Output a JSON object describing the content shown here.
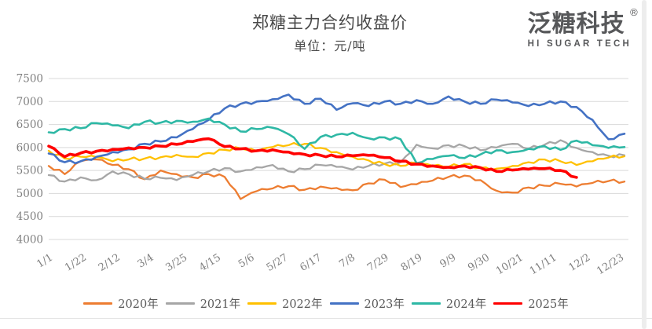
{
  "header": {
    "title": "郑糖主力合约收盘价",
    "subtitle": "单位：元/吨"
  },
  "brand": {
    "name": "泛糖科技",
    "registered_mark": "®",
    "tagline": "HI SUGAR TECH"
  },
  "colors": {
    "grid": "#d9d9d9",
    "axis_text": "#7f7f7f",
    "title_text": "#4a4a4a",
    "legend_text": "#595959",
    "brand_text": "#57585a"
  },
  "chart_data": {
    "type": "line",
    "title": "郑糖主力合约收盘价",
    "subtitle": "单位：元/吨",
    "ylabel": "元/吨",
    "ylim": [
      4000,
      7500
    ],
    "y_ticks": [
      4000,
      4500,
      5000,
      5500,
      6000,
      6500,
      7000,
      7500
    ],
    "grid": "horizontal",
    "legend_position": "bottom",
    "x_tick_labels": [
      "1/1",
      "1/22",
      "2/12",
      "3/4",
      "3/25",
      "4/15",
      "5/6",
      "5/27",
      "6/17",
      "7/8",
      "7/29",
      "8/19",
      "9/9",
      "9/30",
      "10/21",
      "11/11",
      "12/2",
      "12/23"
    ],
    "x_tick_days": [
      0,
      21,
      42,
      63,
      84,
      105,
      126,
      147,
      168,
      189,
      210,
      231,
      252,
      273,
      294,
      315,
      336,
      357
    ],
    "x_days": [
      0,
      10,
      20,
      30,
      40,
      50,
      60,
      70,
      80,
      90,
      100,
      110,
      120,
      130,
      140,
      150,
      160,
      170,
      180,
      190,
      200,
      210,
      220,
      230,
      240,
      250,
      260,
      270,
      280,
      290,
      300,
      310,
      320,
      330,
      340,
      350,
      360
    ],
    "series": [
      {
        "name": "2020年",
        "color": "#ED7D31",
        "stroke_width": 2.3,
        "values": [
          5600,
          5420,
          5700,
          5740,
          5620,
          5530,
          5310,
          5500,
          5420,
          5350,
          5420,
          5360,
          4880,
          5050,
          5110,
          5160,
          5080,
          5150,
          5120,
          5070,
          5220,
          5300,
          5140,
          5200,
          5280,
          5360,
          5390,
          5290,
          5060,
          5020,
          5130,
          5170,
          5210,
          5150,
          5230,
          5270,
          5260
        ]
      },
      {
        "name": "2021年",
        "color": "#A6A6A6",
        "stroke_width": 2.3,
        "values": [
          5400,
          5260,
          5350,
          5290,
          5480,
          5420,
          5320,
          5340,
          5290,
          5400,
          5480,
          5550,
          5480,
          5570,
          5620,
          5480,
          5530,
          5620,
          5580,
          5520,
          5600,
          5650,
          5680,
          6060,
          5980,
          6050,
          6030,
          5940,
          6000,
          6080,
          5970,
          6060,
          6160,
          5990,
          5900,
          5820,
          5830
        ]
      },
      {
        "name": "2022年",
        "color": "#FFC000",
        "stroke_width": 2.3,
        "values": [
          5930,
          5760,
          5800,
          5790,
          5700,
          5740,
          5760,
          5790,
          5840,
          5800,
          5880,
          5950,
          5980,
          5920,
          6010,
          6050,
          6080,
          5990,
          5900,
          5800,
          5720,
          5640,
          5600,
          5660,
          5600,
          5580,
          5640,
          5560,
          5540,
          5600,
          5680,
          5740,
          5700,
          5620,
          5700,
          5780,
          5810
        ]
      },
      {
        "name": "2023年",
        "color": "#4472C4",
        "stroke_width": 2.6,
        "values": [
          5870,
          5680,
          5700,
          5800,
          5900,
          5960,
          6080,
          6130,
          6220,
          6400,
          6600,
          6850,
          6950,
          7000,
          7050,
          7150,
          6950,
          7060,
          6820,
          6960,
          6900,
          7000,
          6950,
          7030,
          6950,
          7110,
          7000,
          6950,
          7040,
          6980,
          6900,
          6950,
          7000,
          6880,
          6600,
          6180,
          6300
        ]
      },
      {
        "name": "2024年",
        "color": "#2EB8A5",
        "stroke_width": 2.6,
        "values": [
          6330,
          6400,
          6420,
          6530,
          6480,
          6420,
          6560,
          6540,
          6580,
          6560,
          6630,
          6500,
          6350,
          6400,
          6430,
          6290,
          5970,
          6230,
          6280,
          6320,
          6200,
          6220,
          6180,
          5660,
          5750,
          5820,
          5770,
          5850,
          5940,
          5900,
          5970,
          6030,
          5950,
          6150,
          6050,
          5990,
          6010
        ]
      },
      {
        "name": "2025年",
        "color": "#FF0000",
        "stroke_width": 3.6,
        "values": [
          6030,
          5800,
          5880,
          5920,
          5960,
          5990,
          6000,
          6030,
          6070,
          6130,
          6190,
          6020,
          5970,
          5930,
          5950,
          5900,
          5850,
          5830,
          5800,
          5820,
          5830,
          5780,
          5700,
          5640,
          5600,
          5570,
          5600,
          5560,
          5480,
          5510,
          5530,
          5540,
          5500,
          5350,
          null,
          null,
          null
        ]
      }
    ]
  }
}
